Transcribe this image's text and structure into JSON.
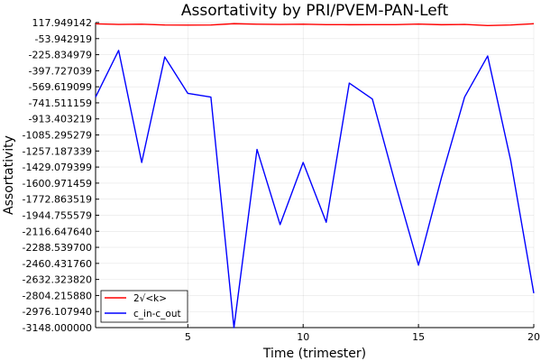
{
  "chart_data": {
    "type": "line",
    "title": "Assortativity by PRI/PVEM-PAN-Left",
    "xlabel": "Time (trimester)",
    "ylabel": "Assortativity",
    "xlim": [
      1,
      20
    ],
    "ylim": [
      -3148.0,
      117.949142
    ],
    "x_ticks": [
      5,
      10,
      15,
      20
    ],
    "y_tick_values": [
      117.949142,
      -53.942919,
      -225.834979,
      -397.727039,
      -569.619099,
      -741.511159,
      -913.403219,
      -1085.295279,
      -1257.187339,
      -1429.079399,
      -1600.971459,
      -1772.863519,
      -1944.755579,
      -2116.64764,
      -2288.5397,
      -2460.43176,
      -2632.32382,
      -2804.21588,
      -2976.10794,
      -3148.0
    ],
    "y_tick_labels": [
      "117.949142",
      "-53.942919",
      "-225.834979",
      "-397.727039",
      "-569.619099",
      "-741.511159",
      "-913.403219",
      "-1085.295279",
      "-1257.187339",
      "-1429.079399",
      "-1600.971459",
      "-1772.863519",
      "-1944.755579",
      "-2116.647640",
      "-2288.539700",
      "-2460.431760",
      "-2632.323820",
      "-2804.215880",
      "-2976.107940",
      "-3148.000000"
    ],
    "grid": true,
    "legend_position": "bottom-left",
    "x": [
      1,
      2,
      3,
      4,
      5,
      6,
      7,
      8,
      9,
      10,
      11,
      12,
      13,
      14,
      15,
      16,
      17,
      18,
      19,
      20
    ],
    "series": [
      {
        "name": "2√<k>",
        "color": "#ff0000",
        "values": [
          104,
          98,
          100,
          92,
          91,
          92,
          106,
          100,
          98,
          100,
          96,
          95,
          96,
          96,
          102,
          95,
          98,
          86,
          92,
          105
        ]
      },
      {
        "name": "c_in-c_out",
        "color": "#0000ff",
        "values": [
          -680,
          -180,
          -1380,
          -250,
          -640,
          -680,
          -3148,
          -1240,
          -2045,
          -1380,
          -2020,
          -530,
          -700,
          -1610,
          -2480,
          -1540,
          -680,
          -240,
          -1360,
          -2780
        ]
      }
    ]
  }
}
